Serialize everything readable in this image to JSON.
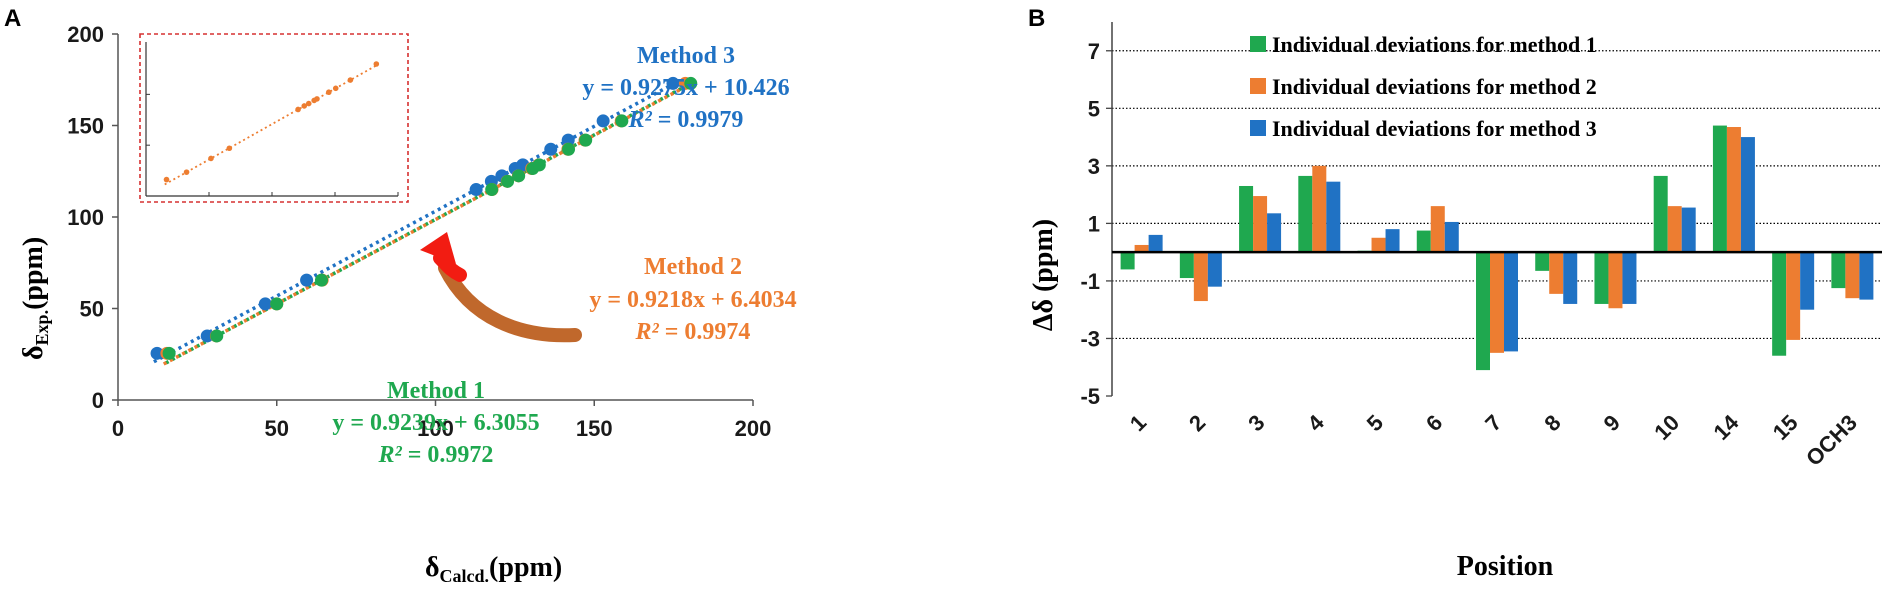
{
  "colors": {
    "m1": "#1fa84f",
    "m2": "#ed7d31",
    "m3": "#2072c4",
    "inset_border": "#d63030",
    "arrow_red": "#f21c12",
    "arrow_brown": "#c0682c"
  },
  "chart_data": [
    {
      "panel": "A",
      "type": "scatter",
      "xlabel": "δ",
      "xlabel_sub": "Calcd.",
      "xlabel_unit": "(ppm)",
      "ylabel": "δ",
      "ylabel_sub": "Exp.",
      "ylabel_unit": "(ppm)",
      "xlim": [
        0,
        200
      ],
      "ylim": [
        0,
        200
      ],
      "x_ticks": [
        "0",
        "50",
        "100",
        "150",
        "200"
      ],
      "y_ticks": [
        "0",
        "50",
        "100",
        "150",
        "200"
      ],
      "exp_values": [
        25.5,
        35,
        52.5,
        65.5,
        115,
        119.5,
        122.5,
        126.5,
        128.5,
        137,
        142,
        152.5,
        173
      ],
      "series": [
        {
          "name": "Method 1",
          "color": "#1fa84f",
          "slope": 0.9239,
          "intercept": 6.3055,
          "label": "Method 1",
          "equation": "y = 0.9239x + 6.3055",
          "r2_label": "R²",
          "r2_value": " = 0.9972",
          "x": [
            16.1,
            31.1,
            50.0,
            64.1,
            117.7,
            122.7,
            126.2,
            130.6,
            132.7,
            141.9,
            147.3,
            158.7,
            180.4
          ]
        },
        {
          "name": "Method 2",
          "color": "#ed7d31",
          "slope": 0.9218,
          "intercept": 6.4034,
          "label": "Method 2",
          "equation": "y = 0.9218x + 6.4034",
          "r2_label": "R²",
          "r2_value": " = 0.9974",
          "x": [
            15.4,
            31.0,
            50.0,
            64.3,
            117.8,
            122.6,
            126.1,
            130.3,
            132.5,
            141.7,
            147.1,
            158.5,
            178.7
          ]
        },
        {
          "name": "Method 3",
          "color": "#2072c4",
          "slope": 0.9275,
          "intercept": 10.426,
          "label": "Method 3",
          "equation": "y = 0.9275x + 10.426",
          "r2_label": "R²",
          "r2_value": " = 0.9979",
          "x": [
            12.3,
            28.1,
            46.4,
            59.4,
            112.8,
            117.6,
            120.9,
            125.1,
            127.5,
            136.3,
            141.8,
            152.8,
            174.8
          ]
        }
      ],
      "inset": {
        "description": "zoom of Method 2 data",
        "x": [
          15.4,
          31.0,
          50.0,
          64.3,
          117.8,
          122.6,
          126.1,
          130.3,
          132.5,
          141.7,
          147.1,
          158.5,
          178.7
        ],
        "y": [
          25.5,
          35,
          52.5,
          65.5,
          115,
          119.5,
          122.5,
          126.5,
          128.5,
          137,
          142,
          152.5,
          173
        ]
      }
    },
    {
      "panel": "B",
      "type": "bar",
      "xlabel": "Position",
      "ylabel": "Δδ (ppm)",
      "ylim": [
        -5,
        8
      ],
      "y_ticks": [
        "7",
        "5",
        "3",
        "1",
        "-1",
        "-3",
        "-5"
      ],
      "categories": [
        "1",
        "2",
        "3",
        "4",
        "5",
        "6",
        "7",
        "8",
        "9",
        "10",
        "14",
        "15",
        "OCH3"
      ],
      "series": [
        {
          "name": "Individual deviations for method 1",
          "color": "#1fa84f",
          "values": [
            -0.6,
            -0.9,
            2.3,
            2.65,
            0.05,
            0.75,
            -4.1,
            -0.65,
            -1.8,
            2.65,
            4.4,
            -3.6,
            -1.25
          ]
        },
        {
          "name": "Individual deviations for method 2",
          "color": "#ed7d31",
          "values": [
            0.25,
            -1.7,
            1.95,
            3.0,
            0.5,
            1.6,
            -3.5,
            -1.45,
            -1.95,
            1.6,
            4.35,
            -3.05,
            -1.6
          ]
        },
        {
          "name": "Individual deviations for method 3",
          "color": "#2072c4",
          "values": [
            0.6,
            -1.2,
            1.35,
            2.45,
            0.8,
            1.05,
            -3.45,
            -1.8,
            -1.8,
            1.55,
            4.0,
            -2.0,
            -1.65
          ]
        }
      ]
    }
  ]
}
